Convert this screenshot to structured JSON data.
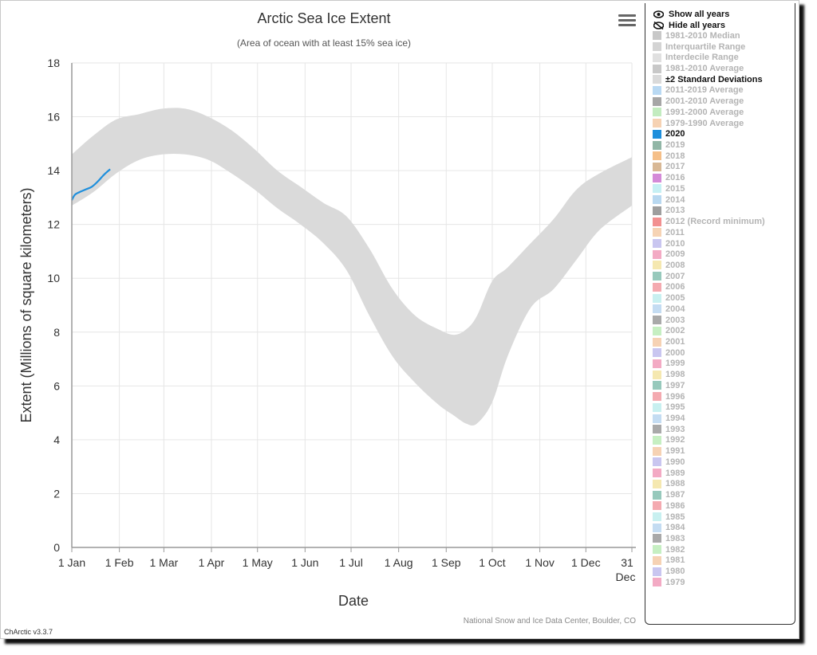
{
  "app": {
    "version": "ChArctic v3.3.7"
  },
  "menu": {
    "icon": "hamburger-menu-icon"
  },
  "chart_data": {
    "type": "area",
    "title": "Arctic Sea Ice Extent",
    "subtitle": "(Area of ocean with at least 15% sea ice)",
    "xlabel": "Date",
    "ylabel": "Extent (Millions of square kilometers)",
    "credit": "National Snow and Ice Data Center, Boulder, CO",
    "ylim": [
      0,
      18
    ],
    "xlim": [
      1,
      366
    ],
    "grid": true,
    "legend_position": "right",
    "y_ticks": [
      "0",
      "2",
      "4",
      "6",
      "8",
      "10",
      "12",
      "14",
      "16",
      "18"
    ],
    "x_ticks": [
      {
        "day": 1,
        "label": "1 Jan"
      },
      {
        "day": 32,
        "label": "1 Feb"
      },
      {
        "day": 61,
        "label": "1 Mar"
      },
      {
        "day": 92,
        "label": "1 Apr"
      },
      {
        "day": 122,
        "label": "1 May"
      },
      {
        "day": 153,
        "label": "1 Jun"
      },
      {
        "day": 183,
        "label": "1 Jul"
      },
      {
        "day": 214,
        "label": "1 Aug"
      },
      {
        "day": 245,
        "label": "1 Sep"
      },
      {
        "day": 275,
        "label": "1 Oct"
      },
      {
        "day": 306,
        "label": "1 Nov"
      },
      {
        "day": 336,
        "label": "1 Dec"
      },
      {
        "day": 366,
        "label": "31 Dec"
      }
    ],
    "band": {
      "name": "±2 Standard Deviations",
      "color": "#dadada",
      "x": [
        1,
        15,
        30,
        45,
        60,
        75,
        90,
        105,
        120,
        135,
        150,
        165,
        180,
        195,
        210,
        225,
        240,
        250,
        258,
        265,
        275,
        285,
        300,
        315,
        330,
        345,
        366
      ],
      "upper": [
        14.6,
        15.3,
        15.9,
        16.1,
        16.3,
        16.3,
        16.0,
        15.5,
        14.8,
        14.0,
        13.4,
        12.8,
        12.3,
        11.1,
        9.6,
        8.6,
        8.1,
        7.9,
        8.1,
        8.6,
        9.9,
        10.4,
        11.3,
        12.2,
        13.3,
        13.9,
        14.5
      ],
      "lower": [
        12.7,
        13.2,
        13.9,
        14.4,
        14.6,
        14.6,
        14.4,
        13.9,
        13.3,
        12.6,
        12.0,
        11.3,
        10.3,
        8.6,
        7.1,
        6.1,
        5.3,
        4.9,
        4.6,
        4.6,
        5.4,
        7.1,
        8.9,
        9.6,
        10.7,
        11.8,
        12.7
      ]
    },
    "series": [
      {
        "name": "2020",
        "color": "#1f8fdc",
        "x": [
          1,
          3,
          6,
          10,
          14,
          18,
          22,
          26
        ],
        "y": [
          12.9,
          13.1,
          13.2,
          13.3,
          13.4,
          13.6,
          13.85,
          14.05
        ]
      }
    ]
  },
  "legend": {
    "show_all": "Show all years",
    "hide_all": "Hide all years",
    "show_icon": "eye-icon",
    "hide_icon": "eye-slash-icon",
    "items": [
      {
        "label": "1981-2010 Median",
        "color": "#c8c8c8",
        "active": false
      },
      {
        "label": "Interquartile Range",
        "color": "#d4d4d4",
        "active": false
      },
      {
        "label": "Interdecile Range",
        "color": "#e0e0e0",
        "active": false
      },
      {
        "label": "1981-2010 Average",
        "color": "#c8c8c8",
        "active": false
      },
      {
        "label": "±2 Standard Deviations",
        "color": "#dadada",
        "active": true
      },
      {
        "label": "2011-2019 Average",
        "color": "#b9d9f3",
        "active": false
      },
      {
        "label": "2001-2010 Average",
        "color": "#a6a6a6",
        "active": false
      },
      {
        "label": "1991-2000 Average",
        "color": "#c3ecc0",
        "active": false
      },
      {
        "label": "1979-1990 Average",
        "color": "#f6d2b3",
        "active": false
      },
      {
        "label": "2020",
        "color": "#1f8fdc",
        "active": true
      },
      {
        "label": "2019",
        "color": "#91b6a6",
        "active": false
      },
      {
        "label": "2018",
        "color": "#f5bf88",
        "active": false
      },
      {
        "label": "2017",
        "color": "#d8b895",
        "active": false
      },
      {
        "label": "2016",
        "color": "#d48ad8",
        "active": false
      },
      {
        "label": "2015",
        "color": "#c6f0f4",
        "active": false
      },
      {
        "label": "2014",
        "color": "#b8d8f0",
        "active": false
      },
      {
        "label": "2013",
        "color": "#9e9e9e",
        "active": false
      },
      {
        "label": "2012 (Record minimum)",
        "color": "#f29090",
        "active": false
      },
      {
        "label": "2011",
        "color": "#f6d3b4",
        "active": false
      },
      {
        "label": "2010",
        "color": "#c9c6f0",
        "active": false
      },
      {
        "label": "2009",
        "color": "#f3aac4",
        "active": false
      },
      {
        "label": "2008",
        "color": "#f5e8b0",
        "active": false
      },
      {
        "label": "2007",
        "color": "#97c9bc",
        "active": false
      },
      {
        "label": "2006",
        "color": "#f4aab0",
        "active": false
      },
      {
        "label": "2005",
        "color": "#c8f0f0",
        "active": false
      },
      {
        "label": "2004",
        "color": "#c4dcf2",
        "active": false
      },
      {
        "label": "2003",
        "color": "#a9a9a9",
        "active": false
      },
      {
        "label": "2002",
        "color": "#c6efc2",
        "active": false
      },
      {
        "label": "2001",
        "color": "#f6d2b4",
        "active": false
      },
      {
        "label": "2000",
        "color": "#c9c6f0",
        "active": false
      },
      {
        "label": "1999",
        "color": "#f3aac4",
        "active": false
      },
      {
        "label": "1998",
        "color": "#f5e8b0",
        "active": false
      },
      {
        "label": "1997",
        "color": "#97c9bc",
        "active": false
      },
      {
        "label": "1996",
        "color": "#f4aab0",
        "active": false
      },
      {
        "label": "1995",
        "color": "#c8f0f0",
        "active": false
      },
      {
        "label": "1994",
        "color": "#c4dcf2",
        "active": false
      },
      {
        "label": "1993",
        "color": "#a9a9a9",
        "active": false
      },
      {
        "label": "1992",
        "color": "#c6efc2",
        "active": false
      },
      {
        "label": "1991",
        "color": "#f6d2b4",
        "active": false
      },
      {
        "label": "1990",
        "color": "#c9c6f0",
        "active": false
      },
      {
        "label": "1989",
        "color": "#f3aac4",
        "active": false
      },
      {
        "label": "1988",
        "color": "#f5e8b0",
        "active": false
      },
      {
        "label": "1987",
        "color": "#97c9bc",
        "active": false
      },
      {
        "label": "1986",
        "color": "#f4aab0",
        "active": false
      },
      {
        "label": "1985",
        "color": "#c8f0f0",
        "active": false
      },
      {
        "label": "1984",
        "color": "#c4dcf2",
        "active": false
      },
      {
        "label": "1983",
        "color": "#a9a9a9",
        "active": false
      },
      {
        "label": "1982",
        "color": "#c6efc2",
        "active": false
      },
      {
        "label": "1981",
        "color": "#f6d2b4",
        "active": false
      },
      {
        "label": "1980",
        "color": "#c9c6f0",
        "active": false
      },
      {
        "label": "1979",
        "color": "#f3aac4",
        "active": false
      }
    ]
  }
}
